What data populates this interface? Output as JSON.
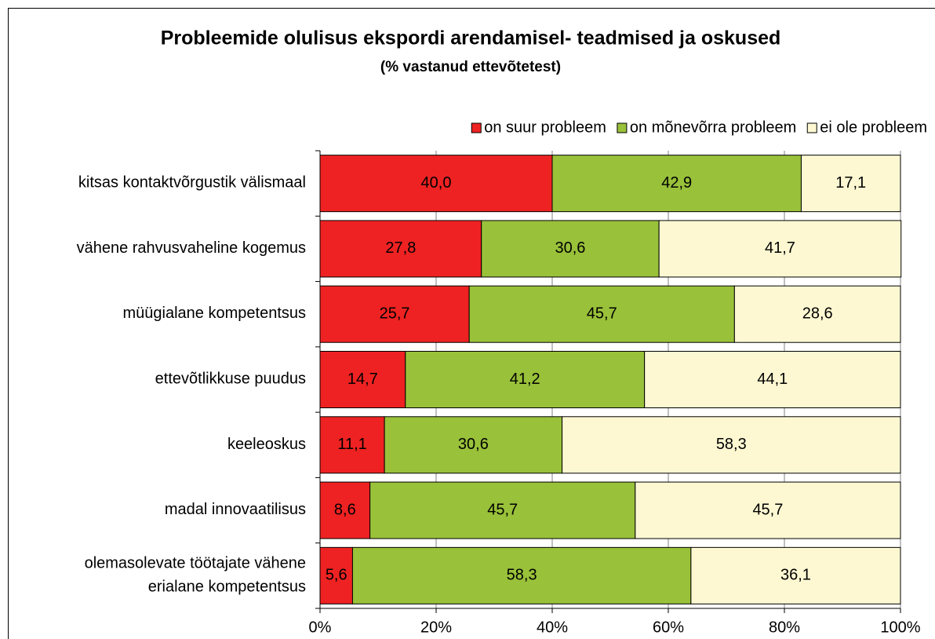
{
  "chart_data": {
    "type": "stacked_bar_horizontal",
    "title": "Probleemide olulisus ekspordi arendamisel- teadmised ja oskused",
    "subtitle": "(% vastanud ettevõtetest)",
    "categories": [
      "kitsas kontaktvõrgustik välismaal",
      "vähene rahvusvaheline kogemus",
      "müügialane kompetentsus",
      "ettevõtlikkuse puudus",
      "keeleoskus",
      "madal innovaatilisus",
      "olemasolevate töötajate vähene\nerialane kompetentsus"
    ],
    "series": [
      {
        "name": "on suur probleem",
        "color": "#ee2222",
        "values": [
          40.0,
          27.8,
          25.7,
          14.7,
          11.1,
          8.6,
          5.6
        ],
        "value_labels": [
          "40,0",
          "27,8",
          "25,7",
          "14,7",
          "11,1",
          "8,6",
          "5,6"
        ]
      },
      {
        "name": "on mõnevõrra probleem",
        "color": "#99c13a",
        "values": [
          42.9,
          30.6,
          45.7,
          41.2,
          30.6,
          45.7,
          58.3
        ],
        "value_labels": [
          "42,9",
          "30,6",
          "45,7",
          "41,2",
          "30,6",
          "45,7",
          "58,3"
        ]
      },
      {
        "name": "ei ole probleem",
        "color": "#fdf8d2",
        "values": [
          17.1,
          41.7,
          28.6,
          44.1,
          58.3,
          45.7,
          36.1
        ],
        "value_labels": [
          "17,1",
          "41,7",
          "28,6",
          "44,1",
          "58,3",
          "45,7",
          "36,1"
        ]
      }
    ],
    "xlim": [
      0,
      100
    ],
    "xticks": [
      {
        "value": 0,
        "label": "0%"
      },
      {
        "value": 20,
        "label": "20%"
      },
      {
        "value": 40,
        "label": "40%"
      },
      {
        "value": 60,
        "label": "60%"
      },
      {
        "value": 80,
        "label": "80%"
      },
      {
        "value": 100,
        "label": "100%"
      }
    ],
    "grid": true,
    "legend": "top-right"
  }
}
